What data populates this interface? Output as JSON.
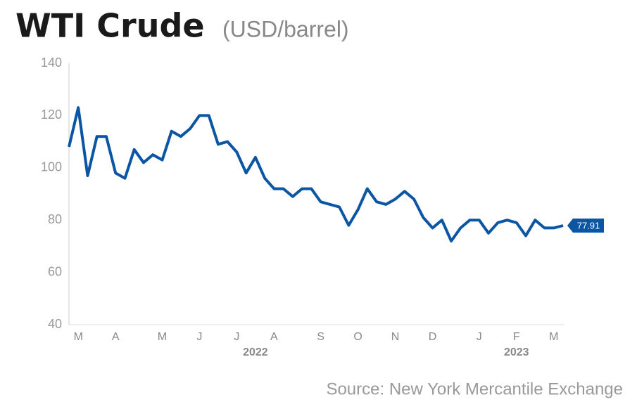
{
  "chart_data": {
    "type": "line",
    "title": "WTI Crude",
    "subtitle": "(USD/barrel)",
    "source": "Source: New York Mercantile Exchange",
    "categories": [
      null,
      "M",
      null,
      null,
      null,
      "A",
      null,
      null,
      null,
      null,
      "M",
      null,
      null,
      null,
      "J",
      null,
      null,
      null,
      "J",
      null,
      null,
      null,
      "A",
      null,
      null,
      null,
      null,
      "S",
      null,
      null,
      null,
      "O",
      null,
      null,
      null,
      "N",
      null,
      null,
      null,
      "D",
      null,
      null,
      null,
      null,
      "J",
      null,
      null,
      null,
      "F",
      null,
      null,
      null,
      "M",
      null
    ],
    "category_years": [
      null,
      null,
      null,
      null,
      null,
      null,
      null,
      null,
      null,
      null,
      null,
      null,
      null,
      null,
      null,
      null,
      null,
      null,
      null,
      null,
      "2022",
      null,
      null,
      null,
      null,
      null,
      null,
      null,
      null,
      null,
      null,
      null,
      null,
      null,
      null,
      null,
      null,
      null,
      null,
      null,
      null,
      null,
      null,
      null,
      null,
      null,
      null,
      null,
      "2023",
      null,
      null,
      null,
      null,
      null
    ],
    "series": [
      {
        "name": "WTI Crude",
        "color": "#0a56a4",
        "values": [
          108,
          123,
          97,
          112,
          112,
          98,
          96,
          107,
          102,
          105,
          103,
          114,
          112,
          115,
          120,
          120,
          109,
          110,
          106,
          98,
          104,
          96,
          92,
          92,
          89,
          92,
          92,
          87,
          86,
          85,
          78,
          84,
          92,
          87,
          86,
          88,
          91,
          88,
          81,
          77,
          80,
          72,
          77,
          80,
          80,
          75,
          79,
          80,
          79,
          74,
          80,
          77,
          77,
          77.91
        ],
        "value_labels": [
          null,
          null,
          null,
          null,
          null,
          null,
          null,
          null,
          null,
          null,
          null,
          null,
          null,
          null,
          null,
          null,
          null,
          null,
          null,
          null,
          null,
          null,
          null,
          null,
          null,
          null,
          null,
          null,
          null,
          null,
          null,
          null,
          null,
          null,
          null,
          null,
          null,
          null,
          null,
          null,
          null,
          null,
          null,
          null,
          null,
          null,
          null,
          null,
          null,
          null,
          null,
          null,
          null,
          "77.91"
        ]
      }
    ],
    "ylim": [
      40,
      140
    ],
    "yticks": [
      40,
      60,
      80,
      100,
      120,
      140
    ],
    "grid": false
  }
}
